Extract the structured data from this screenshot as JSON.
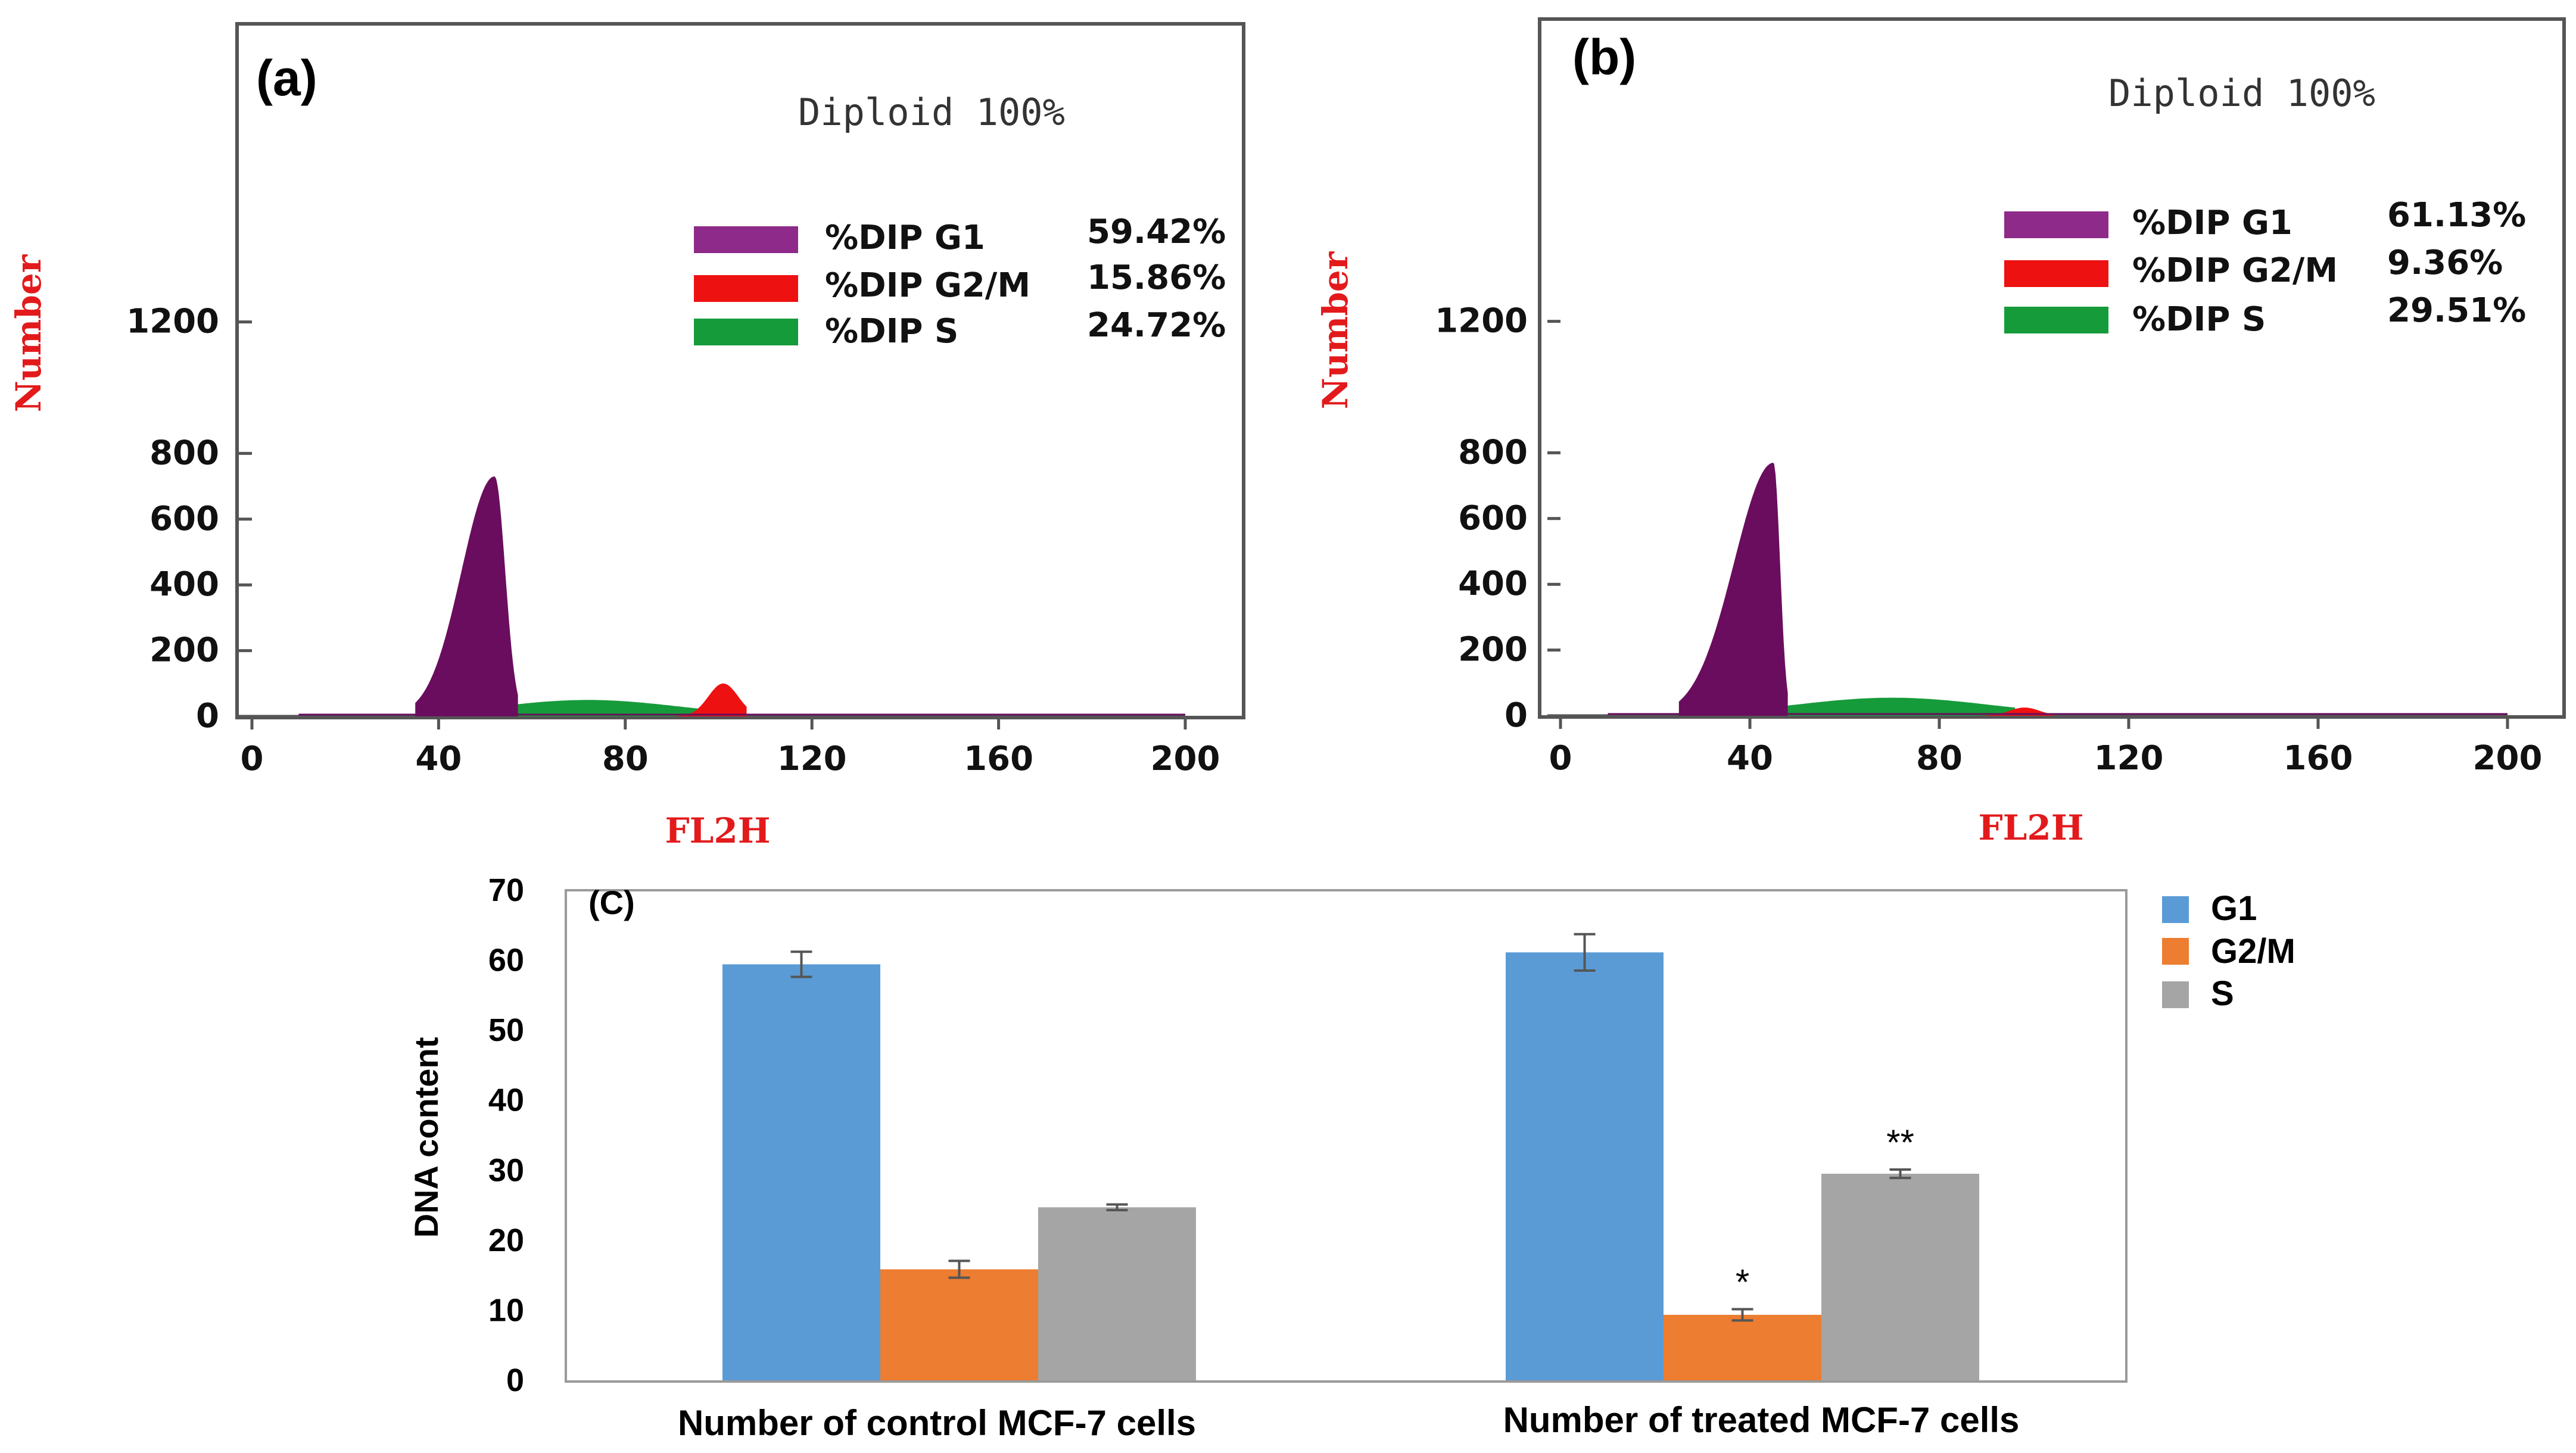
{
  "chart_data": [
    {
      "type": "area",
      "panel_label": "(a)",
      "annotation": "Diploid 100%",
      "xlabel": "FL2H",
      "ylabel": "Number",
      "x_ticks": [
        "0",
        "40",
        "80",
        "120",
        "160",
        "200"
      ],
      "y_ticks": [
        "0",
        "200",
        "400",
        "600",
        "800",
        "1200"
      ],
      "xlim": [
        0,
        200
      ],
      "ylim": [
        0,
        1200
      ],
      "series": [
        {
          "name": "%DIP G1",
          "value_label": "59.42%",
          "color": "#6a0d5e",
          "peak_x": 52,
          "peak_y": 730,
          "range": [
            35,
            57
          ]
        },
        {
          "name": "%DIP G2/M",
          "value_label": "15.86%",
          "color": "#ee1111",
          "peak_x": 101,
          "peak_y": 100,
          "range": [
            90,
            106
          ]
        },
        {
          "name": "%DIP S",
          "value_label": "24.72%",
          "color": "#169b3a",
          "peak_x": 72,
          "peak_y": 50,
          "range": [
            38,
            100
          ]
        }
      ],
      "legend_swatch_colors": [
        "#8e2a8a",
        "#ee1111",
        "#169b3a"
      ]
    },
    {
      "type": "area",
      "panel_label": "(b)",
      "annotation": "Diploid 100%",
      "xlabel": "FL2H",
      "ylabel": "Number",
      "x_ticks": [
        "0",
        "40",
        "80",
        "120",
        "160",
        "200"
      ],
      "y_ticks": [
        "0",
        "200",
        "400",
        "600",
        "800",
        "1200"
      ],
      "xlim": [
        0,
        200
      ],
      "ylim": [
        0,
        1200
      ],
      "series": [
        {
          "name": "%DIP G1",
          "value_label": "61.13%",
          "color": "#6a0d5e",
          "peak_x": 45,
          "peak_y": 770,
          "range": [
            25,
            48
          ]
        },
        {
          "name": "%DIP G2/M",
          "value_label": "9.36%",
          "color": "#ee1111",
          "peak_x": 98,
          "peak_y": 25,
          "range": [
            88,
            104
          ]
        },
        {
          "name": "%DIP S",
          "value_label": "29.51%",
          "color": "#169b3a",
          "peak_x": 70,
          "peak_y": 55,
          "range": [
            30,
            96
          ]
        }
      ],
      "legend_swatch_colors": [
        "#8e2a8a",
        "#ee1111",
        "#169b3a"
      ]
    },
    {
      "type": "bar",
      "panel_label": "(C)",
      "ylabel": "DNA content",
      "categories": [
        "Number of control MCF-7 cells",
        "Number of treated MCF-7 cells"
      ],
      "ylim": [
        0,
        70
      ],
      "y_ticks": [
        "0",
        "10",
        "20",
        "30",
        "40",
        "50",
        "60",
        "70"
      ],
      "series": [
        {
          "name": "G1",
          "color": "#5b9bd5",
          "values": [
            59.42,
            61.13
          ],
          "errors": [
            1.8,
            2.6
          ],
          "markers": [
            "",
            ""
          ]
        },
        {
          "name": "G2/M",
          "color": "#ed7d31",
          "values": [
            15.86,
            9.36
          ],
          "errors": [
            1.2,
            0.8
          ],
          "markers": [
            "",
            "*"
          ]
        },
        {
          "name": "S",
          "color": "#a5a5a5",
          "values": [
            24.72,
            29.51
          ],
          "errors": [
            0.4,
            0.6
          ],
          "markers": [
            "",
            "**"
          ]
        }
      ]
    }
  ]
}
